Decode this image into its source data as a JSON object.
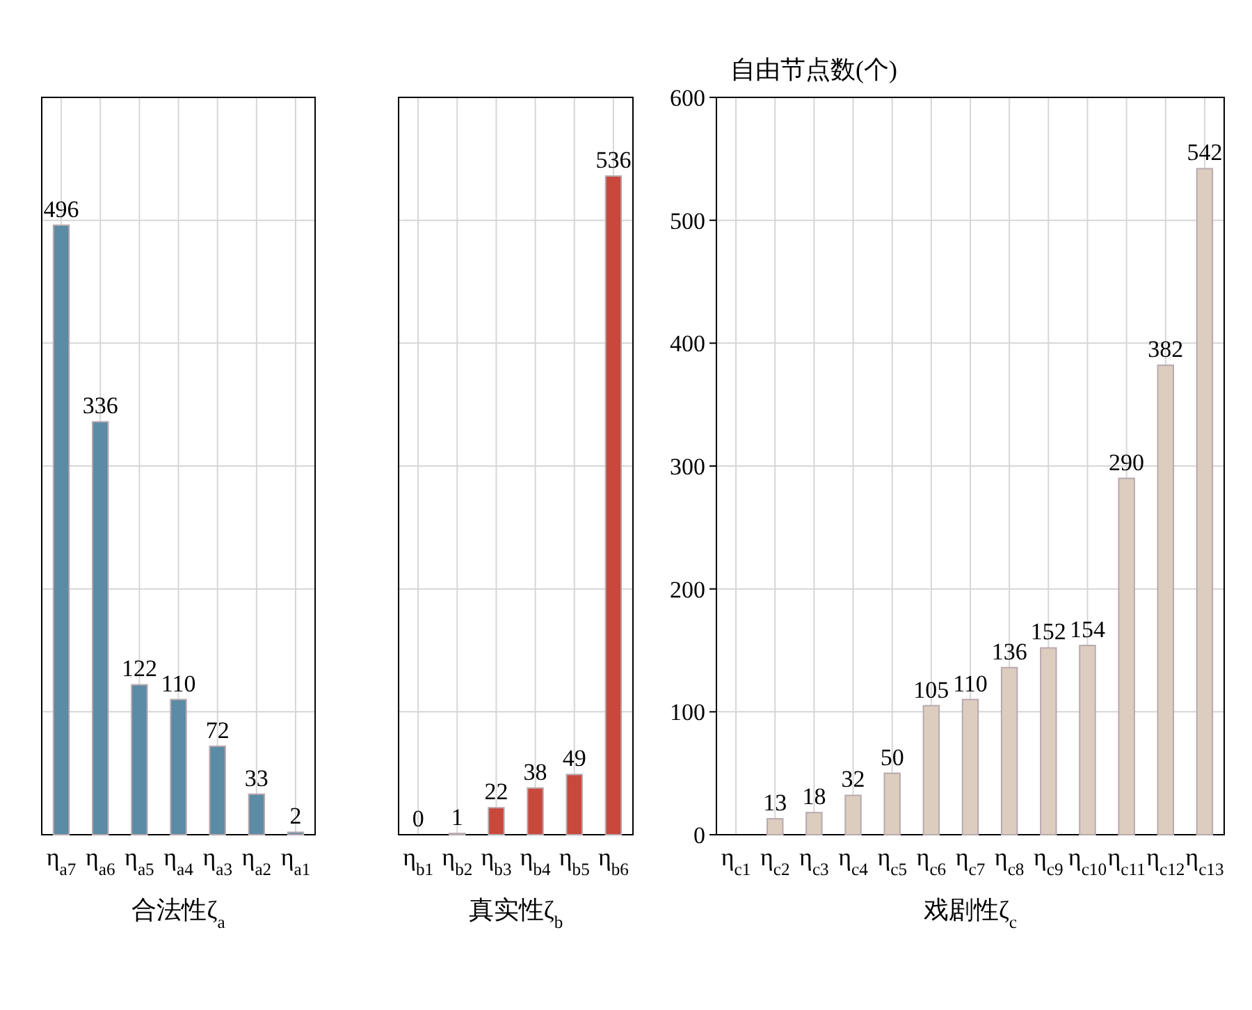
{
  "chart_data": [
    {
      "type": "bar",
      "xlabel": "合法性ζ$_{a}$",
      "categories": [
        "η$_{a7}$",
        "η$_{a6}$",
        "η$_{a5}$",
        "η$_{a4}$",
        "η$_{a3}$",
        "η$_{a2}$",
        "η$_{a1}$"
      ],
      "values": [
        496,
        336,
        122,
        110,
        72,
        33,
        2
      ],
      "color": "#5b8ba5",
      "ylim": [
        0,
        600
      ],
      "yticks": [
        0,
        100,
        200,
        300,
        400,
        500,
        600
      ],
      "tick_labels": "x",
      "data_labels": true,
      "grid": true
    },
    {
      "type": "bar",
      "xlabel": "真实性ζ$_{b}$",
      "categories": [
        "η$_{b1}$",
        "η$_{b2}$",
        "η$_{b3}$",
        "η$_{b4}$",
        "η$_{b5}$",
        "η$_{b6}$"
      ],
      "values": [
        0,
        1,
        22,
        38,
        49,
        536
      ],
      "color": "#c8483c",
      "ylim": [
        0,
        600
      ],
      "yticks": [
        0,
        100,
        200,
        300,
        400,
        500,
        600
      ],
      "tick_labels": "x",
      "data_labels": true,
      "grid": true
    },
    {
      "type": "bar",
      "xlabel": "戏剧性ζ$_{c}$",
      "ylabel": "自由节点数(个)",
      "categories": [
        "η$_{c1}$",
        "η$_{c2}$",
        "η$_{c3}$",
        "η$_{c4}$",
        "η$_{c5}$",
        "η$_{c6}$",
        "η$_{c7}$",
        "η$_{c8}$",
        "η$_{c9}$",
        "η$_{c10}$",
        "η$_{c11}$",
        "η$_{c12}$",
        "η$_{c13}$"
      ],
      "values": [
        0,
        13,
        18,
        32,
        50,
        105,
        110,
        136,
        152,
        154,
        290,
        382,
        542
      ],
      "value_labels": [
        null,
        "13",
        "18",
        "32",
        "50",
        "105",
        "110",
        "136",
        "152",
        "154",
        "290",
        "382",
        "542"
      ],
      "color": "#dccdbf",
      "ylim": [
        0,
        600
      ],
      "yticks": [
        0,
        100,
        200,
        300,
        400,
        500,
        600
      ],
      "grid": true
    }
  ]
}
